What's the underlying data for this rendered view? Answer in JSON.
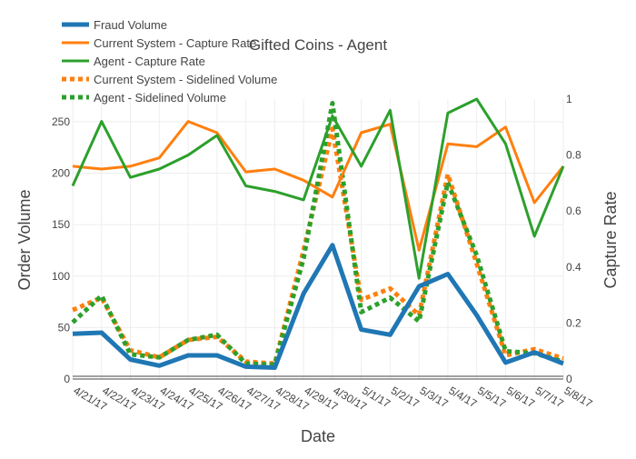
{
  "chart_data": {
    "type": "line",
    "title": "Gifted Coins - Agent",
    "xlabel": "Date",
    "ylabel": "Order Volume",
    "y2label": "Capture Rate",
    "categories": [
      "4/21/17",
      "4/22/17",
      "4/23/17",
      "4/24/17",
      "4/25/17",
      "4/26/17",
      "4/27/17",
      "4/28/17",
      "4/29/17",
      "4/30/17",
      "5/1/17",
      "5/2/17",
      "5/3/17",
      "5/4/17",
      "5/5/17",
      "5/6/17",
      "5/7/17",
      "5/8/17"
    ],
    "ylim": [
      0,
      272
    ],
    "y2lim": [
      0,
      1
    ],
    "y_ticks": [
      0,
      50,
      100,
      150,
      200,
      250
    ],
    "y2_ticks": [
      "0",
      "0.2",
      "0.4",
      "0.6",
      "0.8",
      "1"
    ],
    "grid": true,
    "legend_position": "top-left",
    "series": [
      {
        "name": "Fraud Volume",
        "axis": "y",
        "color": "#1f77b4",
        "dash": "solid",
        "width": 5,
        "values": [
          44,
          45,
          19,
          13,
          23,
          23,
          12,
          11,
          83,
          130,
          48,
          43,
          90,
          102,
          62,
          16,
          26,
          15
        ]
      },
      {
        "name": "Current System - Capture Rate",
        "axis": "y2",
        "color": "#ff7f0e",
        "dash": "solid",
        "width": 3,
        "values": [
          0.76,
          0.75,
          0.76,
          0.79,
          0.92,
          0.88,
          0.74,
          0.75,
          0.71,
          0.65,
          0.88,
          0.91,
          0.46,
          0.84,
          0.83,
          0.9,
          0.63,
          0.76
        ]
      },
      {
        "name": "Agent - Capture Rate",
        "axis": "y2",
        "color": "#2ca02c",
        "dash": "solid",
        "width": 3,
        "values": [
          0.69,
          0.92,
          0.72,
          0.75,
          0.8,
          0.87,
          0.69,
          0.67,
          0.64,
          0.94,
          0.76,
          0.96,
          0.36,
          0.95,
          1.0,
          0.84,
          0.51,
          0.76
        ]
      },
      {
        "name": "Current System - Sidelined Volume",
        "axis": "y",
        "color": "#ff7f0e",
        "dash": "dot",
        "width": 5,
        "values": [
          67,
          79,
          28,
          21,
          38,
          41,
          17,
          15,
          125,
          243,
          77,
          88,
          62,
          199,
          112,
          23,
          29,
          20
        ]
      },
      {
        "name": "Agent  - Sidelined Volume",
        "axis": "y",
        "color": "#2ca02c",
        "dash": "dot",
        "width": 5,
        "values": [
          55,
          81,
          24,
          21,
          38,
          43,
          15,
          14,
          117,
          268,
          65,
          79,
          56,
          191,
          120,
          27,
          25,
          17
        ]
      }
    ]
  }
}
